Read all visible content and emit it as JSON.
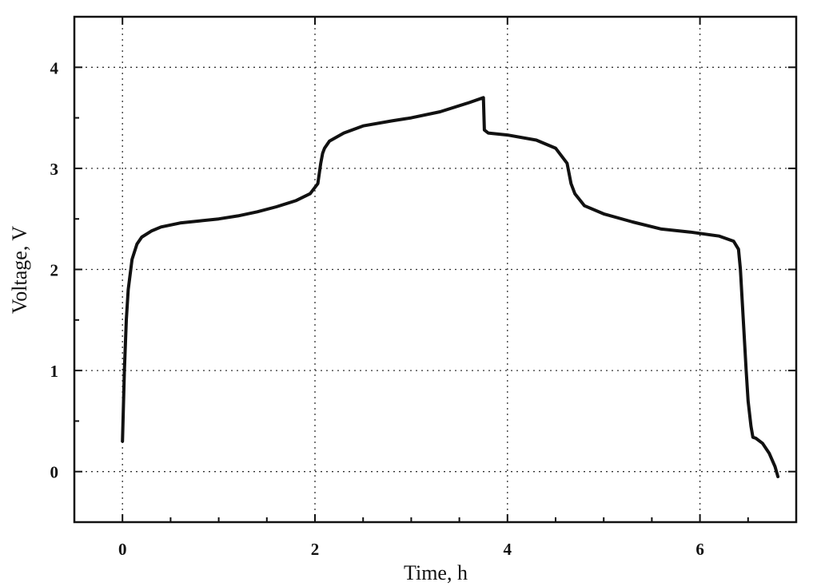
{
  "chart_data": {
    "type": "line",
    "title": "",
    "xlabel": "Time, h",
    "ylabel": "Voltage, V",
    "xlim": [
      -0.5,
      7.0
    ],
    "ylim": [
      -0.5,
      4.5
    ],
    "xticks": [
      0,
      2,
      4,
      6
    ],
    "yticks": [
      0,
      1,
      2,
      3,
      4
    ],
    "grid": true,
    "legend": "none",
    "line_color": "#111111",
    "series": [
      {
        "x": [
          0.0,
          0.02,
          0.04,
          0.06,
          0.1,
          0.15,
          0.2,
          0.3,
          0.4,
          0.6,
          0.8,
          1.0,
          1.2,
          1.4,
          1.6,
          1.8,
          1.95,
          2.03,
          2.06,
          2.08,
          2.1,
          2.15,
          2.3,
          2.5,
          2.8,
          3.0,
          3.3,
          3.6,
          3.75,
          3.76,
          3.8,
          4.0,
          4.3,
          4.5,
          4.62,
          4.66,
          4.7,
          4.8,
          5.0,
          5.3,
          5.6,
          5.9,
          6.2,
          6.35,
          6.4,
          6.42,
          6.45,
          6.48,
          6.5,
          6.53,
          6.55,
          6.58,
          6.65,
          6.72,
          6.78,
          6.81
        ],
        "y": [
          0.3,
          1.0,
          1.5,
          1.8,
          2.1,
          2.25,
          2.32,
          2.38,
          2.42,
          2.46,
          2.48,
          2.5,
          2.53,
          2.57,
          2.62,
          2.68,
          2.75,
          2.85,
          3.05,
          3.15,
          3.2,
          3.27,
          3.35,
          3.42,
          3.47,
          3.5,
          3.56,
          3.65,
          3.7,
          3.38,
          3.35,
          3.33,
          3.28,
          3.2,
          3.05,
          2.85,
          2.75,
          2.63,
          2.55,
          2.47,
          2.4,
          2.37,
          2.33,
          2.28,
          2.2,
          2.0,
          1.5,
          1.0,
          0.7,
          0.45,
          0.34,
          0.33,
          0.28,
          0.18,
          0.05,
          -0.05
        ]
      }
    ]
  }
}
